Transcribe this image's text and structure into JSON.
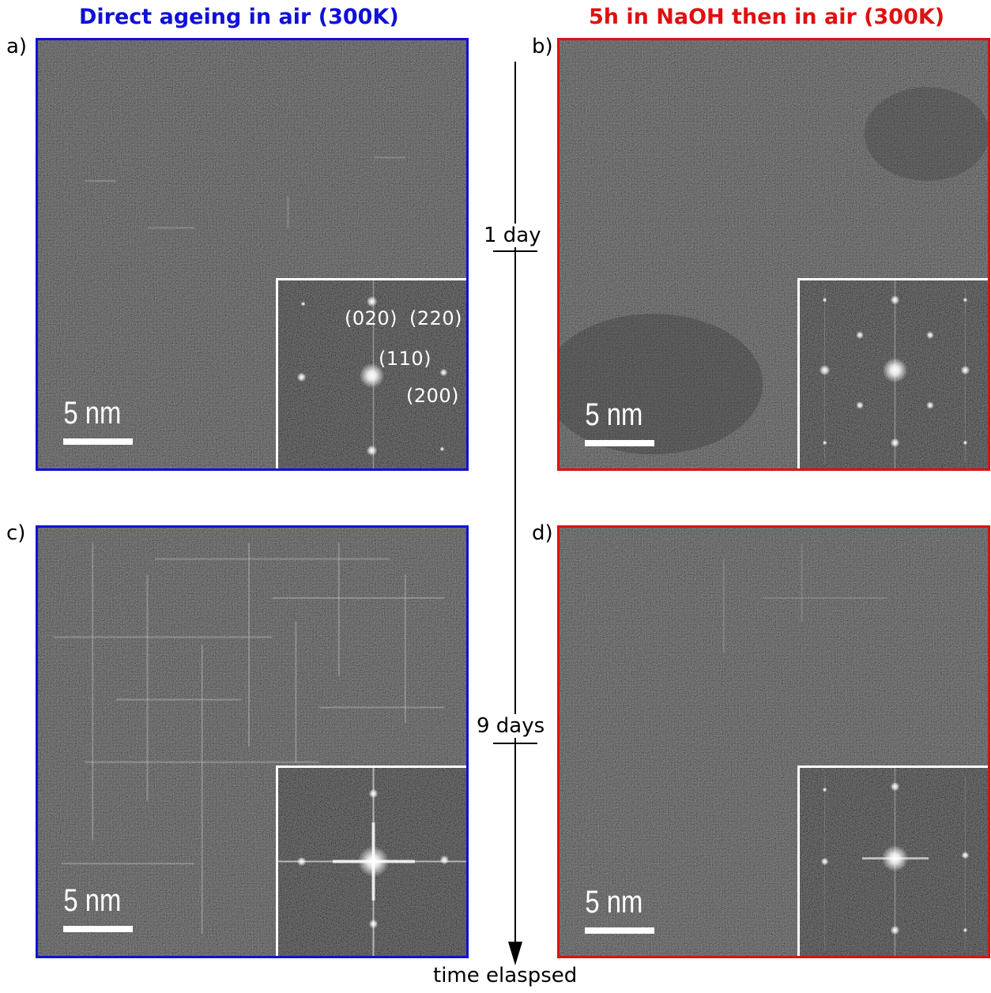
{
  "columns": {
    "left_title": "Direct ageing in air (300K)",
    "right_title": "5h in NaOH then in air (300K)",
    "left_color": "#1010d8",
    "right_color": "#e01010"
  },
  "panels": [
    {
      "label": "a)",
      "scale_bar": "5 nm",
      "frame_color": "#1010d8"
    },
    {
      "label": "b)",
      "scale_bar": "5 nm",
      "frame_color": "#e01010"
    },
    {
      "label": "c)",
      "scale_bar": "5 nm",
      "frame_color": "#1010d8"
    },
    {
      "label": "d)",
      "scale_bar": "5 nm",
      "frame_color": "#e01010"
    }
  ],
  "fft_indices": {
    "i020": "(020)",
    "i220": "(220)",
    "i110": "(110)",
    "i200": "(200)"
  },
  "timeline": {
    "tick1": "1 day",
    "tick2": "9 days",
    "axis_label": "time elaspsed"
  }
}
